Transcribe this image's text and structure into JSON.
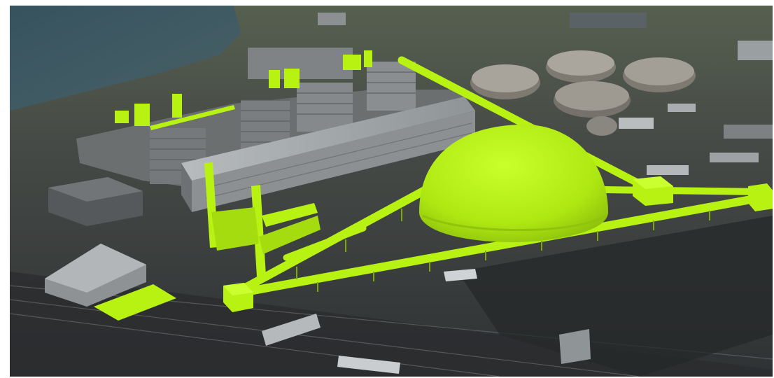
{
  "scene": {
    "colors": {
      "highlight": "#b8f212",
      "highlight_dark": "#8fc40c",
      "ground": "#3a3d3f",
      "water": "#3c5560",
      "building_roof": "#9ea2a4",
      "building_wall": "#6d7173"
    }
  }
}
